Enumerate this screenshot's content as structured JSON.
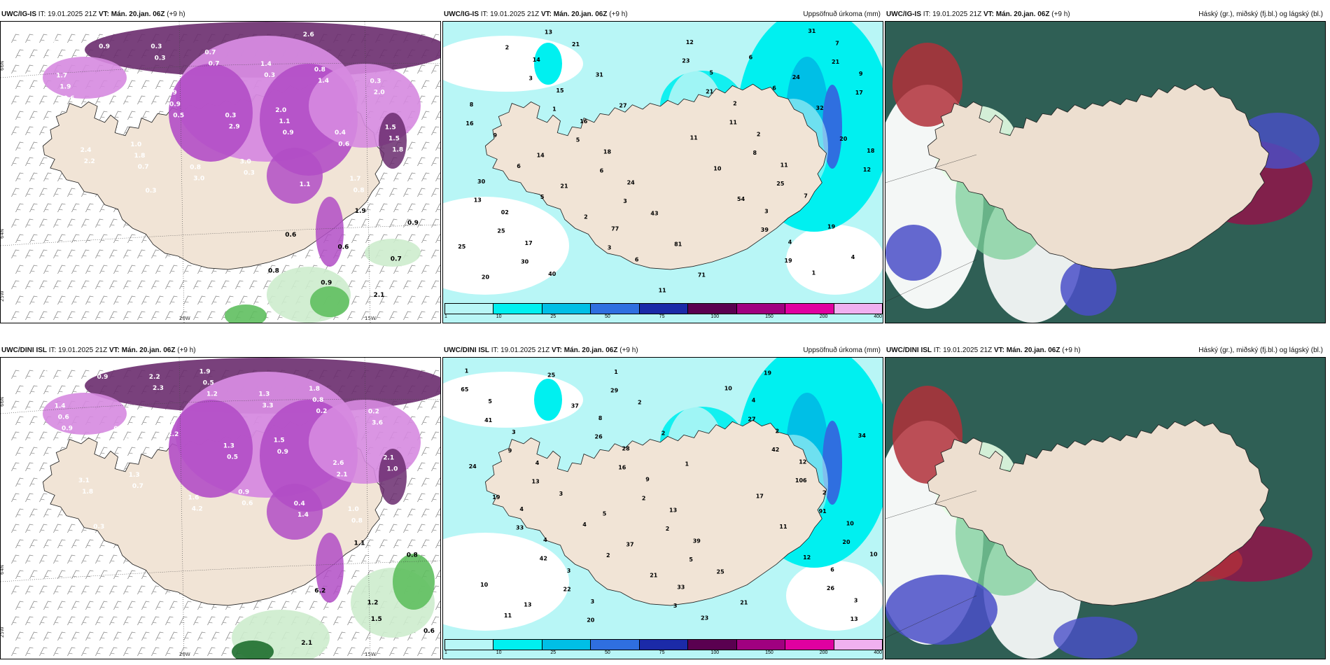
{
  "panels": [
    {
      "id": "top-left",
      "model": "UWC/IG-IS",
      "it_label": "IT: 19.01.2025 21Z",
      "vt_label": "VT: Mán. 20.jan. 06Z",
      "lead": "(+9 h)",
      "right_title": "",
      "lon_labels": [
        "20W",
        "15W"
      ],
      "lat_labels": [
        "66N",
        "64N",
        "25W"
      ],
      "values": [
        "0.3",
        "1.4",
        "0.3",
        "0.4",
        "0.3",
        "0.4",
        "2.4",
        "0.8",
        "1.1",
        "0.3",
        "0.3",
        "0.3",
        "2.0",
        "1.5",
        "2.9",
        "0.6",
        "2.2",
        "3.0",
        "2.6",
        "1.4",
        "1.7",
        "1.9",
        "2.0",
        "1.5",
        "1.0",
        "3.0",
        "1.7",
        "1.8",
        "0.7",
        "0.8",
        "1.9",
        "0.9",
        "1.1",
        "1.5",
        "1.8",
        "0.3",
        "0.8",
        "0.9",
        "0.7",
        "1.4",
        "0.6",
        "0.5",
        "0.9",
        "1.8",
        "0.7",
        "0.3",
        "1.9",
        "0.9",
        "0.6",
        "0.6",
        "0.7",
        "0.8",
        "0.9",
        "2.1"
      ]
    },
    {
      "id": "top-middle",
      "model": "UWC/IG-IS",
      "it_label": "IT: 19.01.2025 21Z",
      "vt_label": "VT: Mán. 20.jan. 06Z",
      "lead": "(+9 h)",
      "right_title": "Uppsöfnuð úrkoma (mm)",
      "values": [
        "3",
        "2",
        "21",
        "14",
        "3",
        "6",
        "5",
        "1",
        "3",
        "2",
        "20",
        "25",
        "13",
        "30",
        "25",
        "13",
        "12",
        "20",
        "32",
        "24",
        "16",
        "17",
        "21",
        "31",
        "19",
        "39",
        "54",
        "10",
        "11",
        "25",
        "8",
        "11",
        "21",
        "23",
        "11",
        "6",
        "77",
        "71",
        "81",
        "43",
        "24",
        "18",
        "16",
        "15",
        "14",
        "27",
        "31",
        "21",
        "40",
        "17",
        "02",
        "30",
        "18",
        "5",
        "6",
        "9",
        "8",
        "9",
        "7",
        "1",
        "4",
        "3",
        "4",
        "19",
        "7",
        "11",
        "2",
        "2",
        "5",
        "12",
        "6",
        "6"
      ],
      "legend": [
        "1",
        "10",
        "25",
        "50",
        "75",
        "100",
        "150",
        "200",
        "400"
      ],
      "legend_colors": [
        "#b8f6f6",
        "#00f0f0",
        "#00bfe6",
        "#2f6fe0",
        "#1b2aa8",
        "#5a0050",
        "#a00080",
        "#e000a0",
        "#f0b0f0"
      ]
    },
    {
      "id": "top-right",
      "model": "UWC/IG-IS",
      "it_label": "IT: 19.01.2025 21Z",
      "vt_label": "VT: Mán. 20.jan. 06Z",
      "lead": "(+9 h)",
      "right_title": "Háský (gr.), miðský (fj.bl.) og lágský (bl.)"
    },
    {
      "id": "bottom-left",
      "model": "UWC/DINI ISL",
      "it_label": "IT: 19.01.2025 21Z",
      "vt_label": "VT: Mán. 20.jan. 06Z",
      "lead": "(+9 h)",
      "right_title": "",
      "lon_labels": [
        "20W",
        "15W"
      ],
      "lat_labels": [
        "66N",
        "64N",
        "25W"
      ],
      "values": [
        "0.4",
        "1.4",
        "2.2",
        "1.3",
        "0.2",
        "0.4",
        "1.3",
        "2.6",
        "3.1",
        "1.6",
        "1.4",
        "2.3",
        "2.3",
        "3.3",
        "3.6",
        "1.6",
        "0.5",
        "2.1",
        "1.8",
        "4.2",
        "1.9",
        "1.8",
        "1.4",
        "0.6",
        "1.5",
        "2.1",
        "1.3",
        "0.9",
        "1.0",
        "0.3",
        "0.5",
        "0.8",
        "0.6",
        "2.2",
        "0.9",
        "1.0",
        "0.7",
        "0.6",
        "0.8",
        "0.9",
        "1.2",
        "0.2",
        "0.9",
        "6.2",
        "1.2",
        "1.5",
        "0.6",
        "2.1",
        "1.1",
        "0.8"
      ]
    },
    {
      "id": "bottom-middle",
      "model": "UWC/DINI ISL",
      "it_label": "IT: 19.01.2025 21Z",
      "vt_label": "VT: Mán. 20.jan. 06Z",
      "lead": "(+9 h)",
      "right_title": "Uppsöfnuð úrkoma (mm)",
      "values": [
        "3",
        "21",
        "37",
        "5",
        "5",
        "2",
        "2",
        "16",
        "26",
        "37",
        "25",
        "13",
        "29",
        "20",
        "22",
        "42",
        "33",
        "19",
        "24",
        "34",
        "13",
        "9",
        "41",
        "65",
        "13",
        "26",
        "12",
        "11",
        "17",
        "20",
        "91",
        "106",
        "42",
        "27",
        "10",
        "23",
        "33",
        "19",
        "21",
        "25",
        "39",
        "13",
        "9",
        "28",
        "8",
        "1",
        "2",
        "2",
        "1",
        "3",
        "3",
        "4",
        "4",
        "2",
        "4",
        "3",
        "4",
        "3",
        "5",
        "1",
        "3",
        "6",
        "11",
        "10",
        "10",
        "10",
        "2",
        "12",
        "2",
        "4"
      ],
      "legend": [
        "1",
        "10",
        "25",
        "50",
        "75",
        "100",
        "150",
        "200",
        "400"
      ],
      "legend_colors": [
        "#b8f6f6",
        "#00f0f0",
        "#00bfe6",
        "#2f6fe0",
        "#1b2aa8",
        "#5a0050",
        "#a00080",
        "#e000a0",
        "#f0b0f0"
      ]
    },
    {
      "id": "bottom-right",
      "model": "UWC/DINI ISL",
      "it_label": "IT: 19.01.2025 21Z",
      "vt_label": "VT: Mán. 20.jan. 06Z",
      "lead": "(+9 h)",
      "right_title": "Háský (gr.), miðský (fj.bl.) og lágský (bl.)"
    }
  ],
  "colors": {
    "land": "#f1e4d6",
    "ocean_precip": "#ffffff",
    "purple_light": "#d68ae0",
    "purple_mid": "#b24ec6",
    "purple_dark": "#6a2c6e",
    "green_light": "#cdeccd",
    "green_mid": "#5fbf5f",
    "green_dark": "#1e6e2e",
    "cloud_high": "#2f5f55",
    "cloud_mid": "#8b1a4a",
    "cloud_low": "#4a4fc8",
    "cyan_light": "#b8f6f6",
    "cyan": "#00f0f0",
    "cyan_dark": "#00bfe6",
    "blue": "#2f6fe0"
  }
}
